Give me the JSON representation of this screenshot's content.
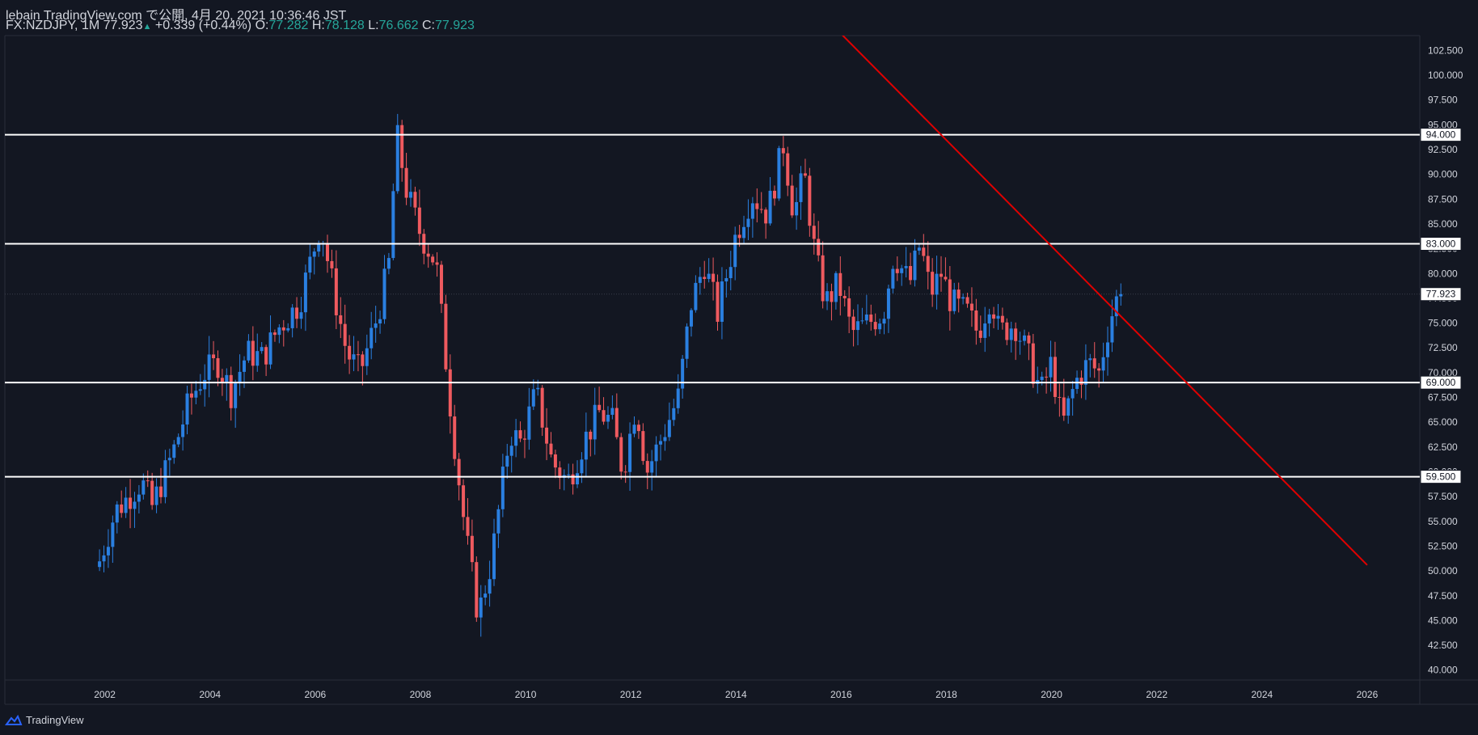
{
  "header": {
    "line1": "lebain TradingView.com で公開, 4月 20, 2021 10:36:46 JST",
    "symbol": "FX:NZDJPY, 1M",
    "last": "77.923",
    "change": "+0.339 (+0.44%)",
    "o_label": "O:",
    "o": "77.282",
    "h_label": "H:",
    "h": "78.128",
    "l_label": "L:",
    "l": "76.662",
    "c_label": "C:",
    "c": "77.923"
  },
  "brand": "TradingView",
  "colors": {
    "background": "#131722",
    "up": "#2a7fe0",
    "down": "#ef5a5f",
    "trendline": "#e00000",
    "level_line": "#ffffff",
    "axis_text": "#d1d4dc"
  },
  "chart_data": {
    "type": "candlestick",
    "ylim": [
      39,
      104
    ],
    "xlim": [
      2000.1,
      2027.0
    ],
    "y_ticks": [
      "40.000",
      "42.500",
      "45.000",
      "47.500",
      "50.000",
      "52.500",
      "55.000",
      "57.500",
      "60.000",
      "62.500",
      "65.000",
      "67.500",
      "70.000",
      "72.500",
      "75.000",
      "77.500",
      "80.000",
      "82.500",
      "85.000",
      "87.500",
      "90.000",
      "92.500",
      "95.000",
      "97.500",
      "100.000",
      "102.500"
    ],
    "x_ticks": [
      "2002",
      "2004",
      "2006",
      "2008",
      "2010",
      "2012",
      "2014",
      "2016",
      "2018",
      "2020",
      "2022",
      "2024",
      "2026"
    ],
    "horizontal_levels": [
      {
        "value": 94.0,
        "label": "94.000"
      },
      {
        "value": 83.0,
        "label": "83.000"
      },
      {
        "value": 69.0,
        "label": "69.000"
      },
      {
        "value": 59.5,
        "label": "59.500"
      }
    ],
    "last_price": {
      "value": 77.923,
      "label": "77.923"
    },
    "trendline": {
      "points": [
        [
          2012.0,
          125.6
        ],
        [
          2026.0,
          50.6
        ]
      ]
    },
    "anchors": [
      [
        2001.9,
        51.0
      ],
      [
        2002.2,
        56.0
      ],
      [
        2002.7,
        59.0
      ],
      [
        2002.9,
        56.5
      ],
      [
        2003.3,
        62.0
      ],
      [
        2003.6,
        67.0
      ],
      [
        2003.9,
        70.0
      ],
      [
        2004.15,
        71.0
      ],
      [
        2004.4,
        68.0
      ],
      [
        2004.7,
        72.0
      ],
      [
        2005.0,
        71.5
      ],
      [
        2005.3,
        74.5
      ],
      [
        2005.7,
        77.0
      ],
      [
        2005.9,
        81.0
      ],
      [
        2006.1,
        85.0
      ],
      [
        2006.4,
        77.0
      ],
      [
        2006.6,
        72.0
      ],
      [
        2006.85,
        70.0
      ],
      [
        2007.2,
        76.0
      ],
      [
        2007.4,
        81.0
      ],
      [
        2007.55,
        94.0
      ],
      [
        2007.75,
        88.0
      ],
      [
        2008.0,
        84.0
      ],
      [
        2008.3,
        81.0
      ],
      [
        2008.6,
        65.0
      ],
      [
        2008.85,
        54.0
      ],
      [
        2009.1,
        45.5
      ],
      [
        2009.35,
        51.0
      ],
      [
        2009.7,
        64.0
      ],
      [
        2009.9,
        63.0
      ],
      [
        2010.2,
        68.0
      ],
      [
        2010.5,
        61.0
      ],
      [
        2010.8,
        59.0
      ],
      [
        2011.1,
        63.0
      ],
      [
        2011.4,
        66.0
      ],
      [
        2011.65,
        65.0
      ],
      [
        2011.85,
        60.0
      ],
      [
        2012.1,
        67.0
      ],
      [
        2012.3,
        60.0
      ],
      [
        2012.55,
        63.0
      ],
      [
        2012.9,
        67.5
      ],
      [
        2013.15,
        77.0
      ],
      [
        2013.4,
        81.0
      ],
      [
        2013.65,
        76.0
      ],
      [
        2014.0,
        84.0
      ],
      [
        2014.3,
        88.0
      ],
      [
        2014.6,
        86.0
      ],
      [
        2014.9,
        93.0
      ],
      [
        2015.1,
        86.0
      ],
      [
        2015.3,
        90.0
      ],
      [
        2015.5,
        82.0
      ],
      [
        2015.7,
        77.0
      ],
      [
        2015.95,
        79.0
      ],
      [
        2016.2,
        74.0
      ],
      [
        2016.5,
        75.0
      ],
      [
        2016.8,
        76.0
      ],
      [
        2017.0,
        82.0
      ],
      [
        2017.3,
        79.0
      ],
      [
        2017.5,
        83.0
      ],
      [
        2017.7,
        78.0
      ],
      [
        2017.9,
        80.0
      ],
      [
        2018.1,
        77.0
      ],
      [
        2018.4,
        76.0
      ],
      [
        2018.6,
        74.0
      ],
      [
        2018.85,
        78.0
      ],
      [
        2019.0,
        74.0
      ],
      [
        2019.3,
        75.0
      ],
      [
        2019.6,
        71.0
      ],
      [
        2019.8,
        68.0
      ],
      [
        2020.0,
        71.0
      ],
      [
        2020.2,
        64.5
      ],
      [
        2020.45,
        69.0
      ],
      [
        2020.7,
        71.0
      ],
      [
        2020.9,
        70.0
      ],
      [
        2021.05,
        74.0
      ],
      [
        2021.2,
        77.0
      ],
      [
        2021.3,
        77.923
      ]
    ]
  }
}
